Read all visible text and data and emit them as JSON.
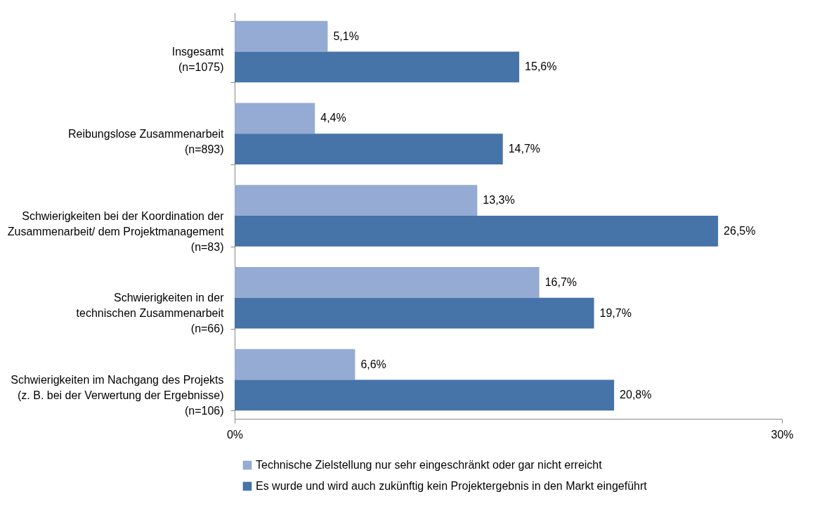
{
  "chart_data": {
    "type": "bar",
    "orientation": "horizontal",
    "categories": [
      "Insgesamt\n(n=1075)",
      "Reibungslose Zusammenarbeit\n(n=893)",
      "Schwierigkeiten bei der Koordination der\nZusammenarbeit/ dem Projektmanagement\n(n=83)",
      "Schwierigkeiten in der\ntechnischen Zusammenarbeit\n(n=66)",
      "Schwierigkeiten im Nachgang des Projekts\n(z. B. bei der Verwertung der Ergebnisse)\n(n=106)"
    ],
    "series": [
      {
        "name": "Technische Zielstellung nur sehr eingeschränkt oder gar nicht erreicht",
        "color": "#95abd3",
        "values": [
          5.1,
          4.4,
          13.3,
          16.7,
          6.6
        ],
        "value_labels": [
          "5,1%",
          "4,4%",
          "13,3%",
          "16,7%",
          "6,6%"
        ]
      },
      {
        "name": "Es wurde und wird auch zukünftig kein Projektergebnis in den Markt eingeführt",
        "color": "#4673a8",
        "values": [
          15.6,
          14.7,
          26.5,
          19.7,
          20.8
        ],
        "value_labels": [
          "15,6%",
          "14,7%",
          "26,5%",
          "19,7%",
          "20,8%"
        ]
      }
    ],
    "xlim": [
      0,
      30
    ],
    "xticks": [
      {
        "value": 0,
        "label": "0%"
      },
      {
        "value": 30,
        "label": "30%"
      }
    ],
    "grid": false,
    "legend": "bottom"
  }
}
